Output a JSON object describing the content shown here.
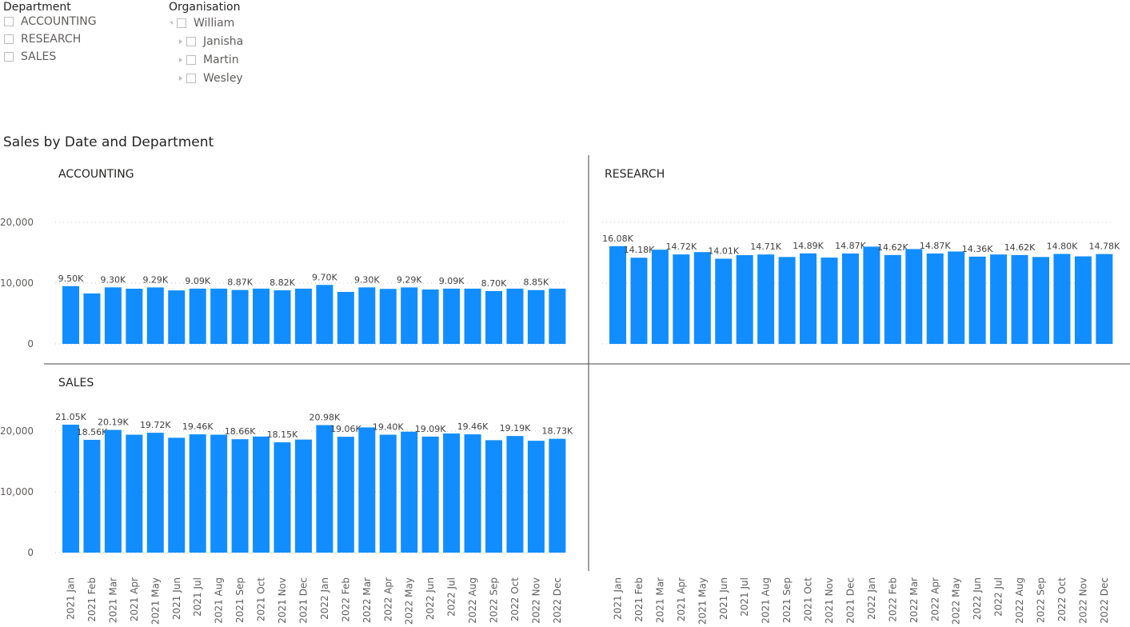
{
  "department_slicer": {
    "title": "Department",
    "items": [
      "ACCOUNTING",
      "RESEARCH",
      "SALES"
    ]
  },
  "organisation_slicer": {
    "title": "Organisation",
    "root": "William",
    "root_state": "expanded",
    "children": [
      "Janisha",
      "Martin",
      "Wesley"
    ]
  },
  "chart_data": {
    "type": "bar",
    "title": "Sales by Date and Department",
    "bar_color": "#118DFF",
    "grid": true,
    "ylim": [
      0,
      20000
    ],
    "yticks": [
      "0",
      "10,000",
      "20,000"
    ],
    "ytick_values": [
      0,
      10000,
      20000
    ],
    "categories": [
      "2021 Jan",
      "2021 Feb",
      "2021 Mar",
      "2021 Apr",
      "2021 May",
      "2021 Jun",
      "2021 Jul",
      "2021 Aug",
      "2021 Sep",
      "2021 Oct",
      "2021 Nov",
      "2021 Dec",
      "2022 Jan",
      "2022 Feb",
      "2022 Mar",
      "2022 Apr",
      "2022 May",
      "2022 Jun",
      "2022 Jul",
      "2022 Aug",
      "2022 Sep",
      "2022 Oct",
      "2022 Nov",
      "2022 Dec"
    ],
    "panels": [
      {
        "name": "ACCOUNTING",
        "values": [
          9500,
          8300,
          9300,
          9080,
          9290,
          8800,
          9090,
          9090,
          8870,
          9090,
          8820,
          9090,
          9700,
          8550,
          9300,
          9050,
          9290,
          8950,
          9090,
          9090,
          8700,
          9090,
          8850,
          9090
        ],
        "labels": [
          "9.50K",
          "",
          "9.30K",
          "",
          "9.29K",
          "",
          "9.09K",
          "",
          "8.87K",
          "",
          "8.82K",
          "",
          "9.70K",
          "",
          "9.30K",
          "",
          "9.29K",
          "",
          "9.09K",
          "",
          "8.70K",
          "",
          "8.85K",
          ""
        ]
      },
      {
        "name": "RESEARCH",
        "values": [
          16080,
          14180,
          15500,
          14720,
          15100,
          14010,
          14600,
          14710,
          14300,
          14890,
          14200,
          14870,
          16000,
          14620,
          15600,
          14870,
          15200,
          14360,
          14710,
          14620,
          14300,
          14800,
          14400,
          14780
        ],
        "labels": [
          "16.08K",
          "14.18K",
          "",
          "14.72K",
          "",
          "14.01K",
          "",
          "14.71K",
          "",
          "14.89K",
          "",
          "14.87K",
          "",
          "14.62K",
          "",
          "14.87K",
          "",
          "14.36K",
          "",
          "14.62K",
          "",
          "14.80K",
          "",
          "14.78K"
        ]
      },
      {
        "name": "SALES",
        "values": [
          21050,
          18560,
          20190,
          19400,
          19720,
          18900,
          19460,
          19400,
          18660,
          19100,
          18150,
          18600,
          20980,
          19060,
          20600,
          19400,
          19900,
          19090,
          19600,
          19460,
          18500,
          19190,
          18400,
          18730
        ],
        "labels": [
          "21.05K",
          "18.56K",
          "20.19K",
          "",
          "19.72K",
          "",
          "19.46K",
          "",
          "18.66K",
          "",
          "18.15K",
          "",
          "20.98K",
          "19.06K",
          "",
          "19.40K",
          "",
          "19.09K",
          "",
          "19.46K",
          "",
          "19.19K",
          "",
          "18.73K"
        ]
      }
    ]
  }
}
